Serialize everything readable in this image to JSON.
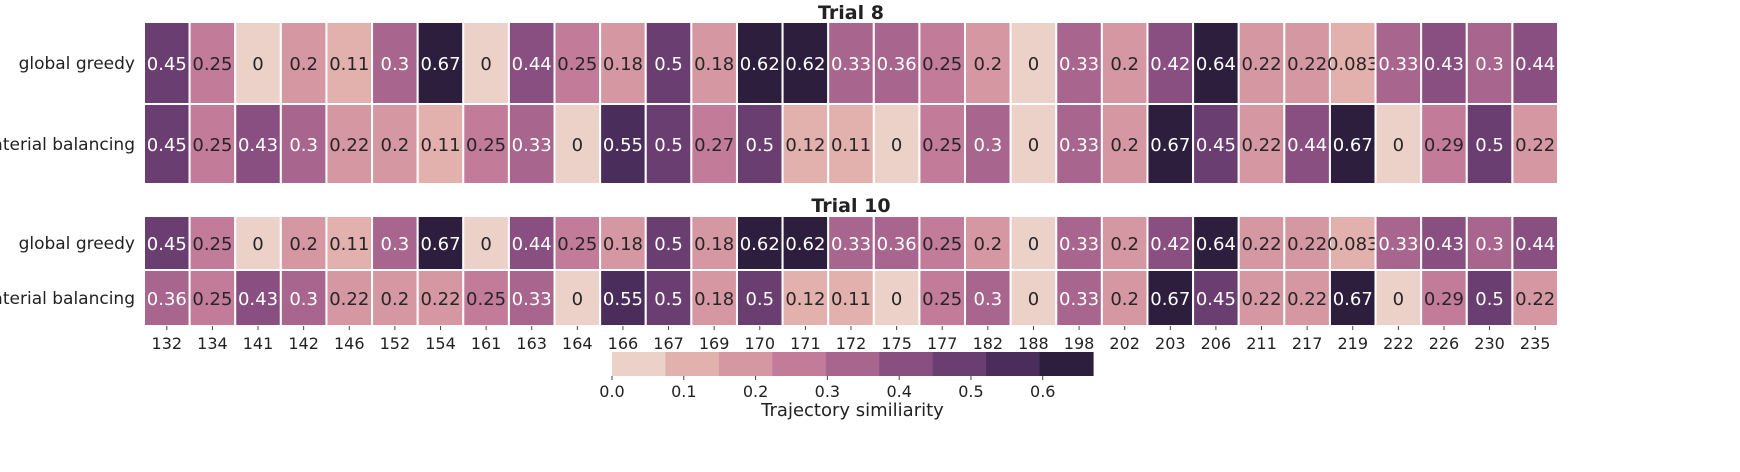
{
  "chart_data": {
    "type": "heatmap",
    "columns": [
      "132",
      "134",
      "141",
      "142",
      "146",
      "152",
      "154",
      "161",
      "163",
      "164",
      "166",
      "167",
      "169",
      "170",
      "171",
      "172",
      "175",
      "177",
      "182",
      "188",
      "198",
      "202",
      "203",
      "206",
      "211",
      "217",
      "219",
      "222",
      "226",
      "230",
      "235"
    ],
    "panels": [
      {
        "title": "Trial 8",
        "rows": [
          {
            "label": "global greedy",
            "values": [
              0.45,
              0.25,
              0,
              0.2,
              0.11,
              0.3,
              0.67,
              0,
              0.44,
              0.25,
              0.18,
              0.5,
              0.18,
              0.62,
              0.62,
              0.33,
              0.36,
              0.25,
              0.2,
              0,
              0.33,
              0.2,
              0.42,
              0.64,
              0.22,
              0.22,
              0.083,
              0.33,
              0.43,
              0.3,
              0.44
            ],
            "labels": [
              "0.45",
              "0.25",
              "0",
              "0.2",
              "0.11",
              "0.3",
              "0.67",
              "0",
              "0.44",
              "0.25",
              "0.18",
              "0.5",
              "0.18",
              "0.62",
              "0.62",
              "0.33",
              "0.36",
              "0.25",
              "0.2",
              "0",
              "0.33",
              "0.2",
              "0.42",
              "0.64",
              "0.22",
              "0.22",
              "0.083",
              "0.33",
              "0.43",
              "0.3",
              "0.44"
            ]
          },
          {
            "label": "material balancing",
            "values": [
              0.45,
              0.25,
              0.43,
              0.3,
              0.22,
              0.2,
              0.11,
              0.25,
              0.33,
              0,
              0.55,
              0.5,
              0.27,
              0.5,
              0.12,
              0.11,
              0,
              0.25,
              0.3,
              0,
              0.33,
              0.2,
              0.67,
              0.45,
              0.22,
              0.44,
              0.67,
              0,
              0.29,
              0.5,
              0.22
            ],
            "labels": [
              "0.45",
              "0.25",
              "0.43",
              "0.3",
              "0.22",
              "0.2",
              "0.11",
              "0.25",
              "0.33",
              "0",
              "0.55",
              "0.5",
              "0.27",
              "0.5",
              "0.12",
              "0.11",
              "0",
              "0.25",
              "0.3",
              "0",
              "0.33",
              "0.2",
              "0.67",
              "0.45",
              "0.22",
              "0.44",
              "0.67",
              "0",
              "0.29",
              "0.5",
              "0.22"
            ]
          }
        ]
      },
      {
        "title": "Trial 10",
        "rows": [
          {
            "label": "global greedy",
            "values": [
              0.45,
              0.25,
              0,
              0.2,
              0.11,
              0.3,
              0.67,
              0,
              0.44,
              0.25,
              0.18,
              0.5,
              0.18,
              0.62,
              0.62,
              0.33,
              0.36,
              0.25,
              0.2,
              0,
              0.33,
              0.2,
              0.42,
              0.64,
              0.22,
              0.22,
              0.083,
              0.33,
              0.43,
              0.3,
              0.44
            ],
            "labels": [
              "0.45",
              "0.25",
              "0",
              "0.2",
              "0.11",
              "0.3",
              "0.67",
              "0",
              "0.44",
              "0.25",
              "0.18",
              "0.5",
              "0.18",
              "0.62",
              "0.62",
              "0.33",
              "0.36",
              "0.25",
              "0.2",
              "0",
              "0.33",
              "0.2",
              "0.42",
              "0.64",
              "0.22",
              "0.22",
              "0.083",
              "0.33",
              "0.43",
              "0.3",
              "0.44"
            ]
          },
          {
            "label": "material balancing",
            "values": [
              0.36,
              0.25,
              0.43,
              0.3,
              0.22,
              0.2,
              0.22,
              0.25,
              0.33,
              0,
              0.55,
              0.5,
              0.18,
              0.5,
              0.12,
              0.11,
              0,
              0.25,
              0.3,
              0,
              0.33,
              0.2,
              0.67,
              0.45,
              0.22,
              0.22,
              0.67,
              0,
              0.29,
              0.5,
              0.22
            ],
            "labels": [
              "0.36",
              "0.25",
              "0.43",
              "0.3",
              "0.22",
              "0.2",
              "0.22",
              "0.25",
              "0.33",
              "0",
              "0.55",
              "0.5",
              "0.18",
              "0.5",
              "0.12",
              "0.11",
              "0",
              "0.25",
              "0.3",
              "0",
              "0.33",
              "0.2",
              "0.67",
              "0.45",
              "0.22",
              "0.22",
              "0.67",
              "0",
              "0.29",
              "0.5",
              "0.22"
            ]
          }
        ]
      }
    ],
    "colorbar": {
      "label": "Trajectory similiarity",
      "range": [
        0,
        0.67
      ],
      "ticks": [
        "0.0",
        "0.1",
        "0.2",
        "0.3",
        "0.4",
        "0.5",
        "0.6"
      ],
      "tick_values": [
        0,
        0.1,
        0.2,
        0.3,
        0.4,
        0.5,
        0.6
      ],
      "colors": [
        "#ecd1c9",
        "#e2b0ad",
        "#d597a2",
        "#c27b99",
        "#a8658d",
        "#8a4f81",
        "#6a3e70",
        "#4a2d5a",
        "#2d1e3e"
      ]
    }
  }
}
